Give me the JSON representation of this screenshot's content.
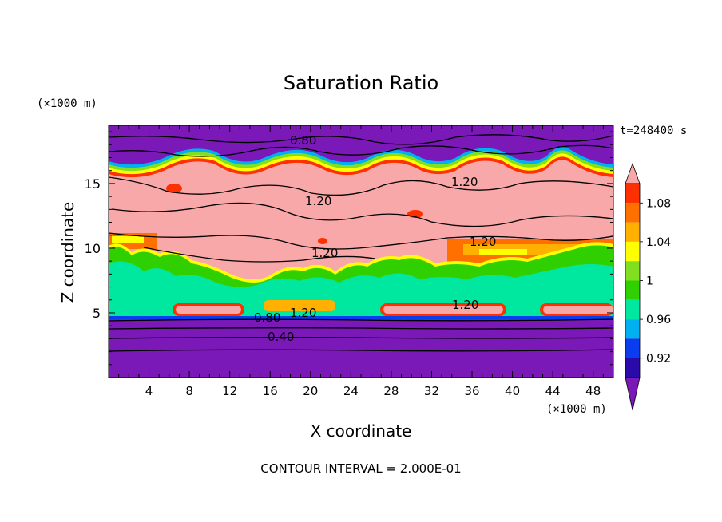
{
  "chart_data": {
    "type": "heatmap",
    "title": "Saturation Ratio",
    "xlabel": "X coordinate",
    "ylabel": "Z coordinate",
    "x_unit": "(×1000 m)",
    "y_unit": "(×1000 m)",
    "time_label": "t=248400 s",
    "footer": "CONTOUR INTERVAL = 2.000E-01",
    "xlim": [
      0,
      50
    ],
    "ylim": [
      0,
      19.5
    ],
    "x_ticks": [
      "4",
      "8",
      "12",
      "16",
      "20",
      "24",
      "28",
      "32",
      "36",
      "40",
      "44",
      "48"
    ],
    "y_ticks": [
      "5",
      "10",
      "15"
    ],
    "colorbar": {
      "tick_labels": [
        "0.92",
        "0.96",
        "1",
        "1.04",
        "1.08"
      ],
      "levels": [
        0.92,
        0.94,
        0.96,
        0.98,
        1.0,
        1.02,
        1.04,
        1.06,
        1.08,
        1.1
      ],
      "colors": [
        "#7b18b8",
        "#2a0aa8",
        "#0a3cf0",
        "#00b0f0",
        "#00e8a0",
        "#30d000",
        "#80e020",
        "#ffff00",
        "#ffb000",
        "#ff7000",
        "#ff3000",
        "#f8a8a8"
      ]
    },
    "layers": [
      {
        "range_z": [
          0,
          4.7
        ],
        "value": "< 0.92",
        "color": "#7b18b8"
      },
      {
        "range_z": [
          4.7,
          10
        ],
        "value": "0.98 – 1.02",
        "color": "#00e8a0"
      },
      {
        "range_z": [
          10,
          16
        ],
        "value": "> 1.10",
        "color": "#f8a8a8"
      },
      {
        "range_z": [
          16,
          19.5
        ],
        "value": "< 0.92",
        "color": "#7b18b8"
      }
    ],
    "contour_labels": [
      {
        "text": "0.80",
        "x": 15,
        "z": 18.8
      },
      {
        "text": "1.20",
        "x": 28,
        "z": 15.4
      },
      {
        "text": "1.20",
        "x": 16.5,
        "z": 14.4
      },
      {
        "text": "1.20",
        "x": 29,
        "z": 10.8
      },
      {
        "text": "1.20",
        "x": 17.2,
        "z": 9.9
      },
      {
        "text": "1.20",
        "x": 15.5,
        "z": 5.3
      },
      {
        "text": "0.80",
        "x": 13,
        "z": 4.8
      },
      {
        "text": "1.20",
        "x": 28,
        "z": 5.6
      },
      {
        "text": "0.40",
        "x": 13.8,
        "z": 3.1
      }
    ]
  }
}
